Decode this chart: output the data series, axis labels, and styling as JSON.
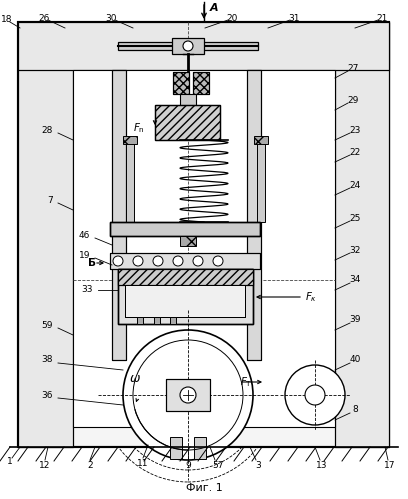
{
  "title": "Фиг. 1",
  "arrow_label": "A",
  "bg_color": "#ffffff",
  "line_color": "#000000",
  "fig_width": 4.08,
  "fig_height": 4.99,
  "dpi": 100
}
